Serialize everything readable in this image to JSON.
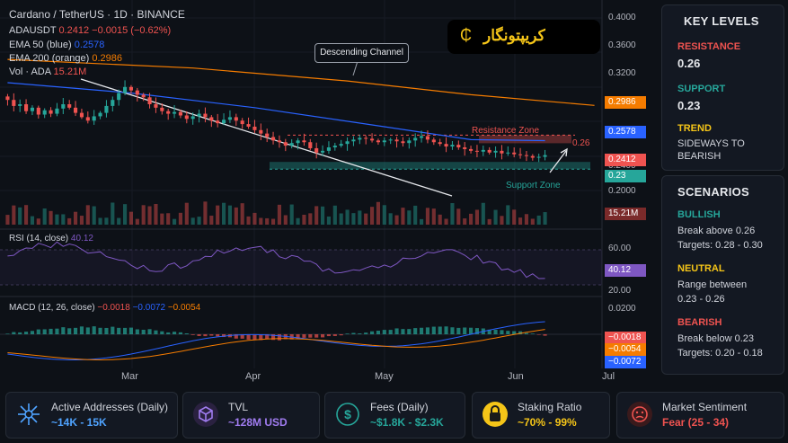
{
  "header": {
    "title": "Cardano / TetherUS · 1D · BINANCE",
    "symbol": "ADAUSDT",
    "price": "0.2412",
    "change": "−0.0015 (−0.62%)",
    "ema50_label": "EMA 50 (blue)",
    "ema50_value": "0.2578",
    "ema200_label": "EMA 200 (orange)",
    "ema200_value": "0.2986",
    "vol_label": "Vol · ADA",
    "vol_value": "15.21M"
  },
  "logo_text": "کریپتونگار",
  "annotations": {
    "channel": "Descending Channel",
    "resistance_zone": "Resistance Zone",
    "support_zone": "Support Zone",
    "resistance_tag": "0.26"
  },
  "price_axis": {
    "ticks": [
      "0.4000",
      "0.3600",
      "0.3200",
      "0.2800",
      "0.2400",
      "0.2000"
    ],
    "ema200_tag": "0.2986",
    "ema50_tag": "0.2578",
    "price_tag": "0.2412",
    "support_tag": "0.23",
    "volume_tag": "15.21M"
  },
  "rsi": {
    "label": "RSI (14, close)",
    "value": "40.12",
    "ticks": [
      "60.00",
      "40.12",
      "20.00"
    ]
  },
  "macd": {
    "label": "MACD (12, 26, close)",
    "v1": "−0.0018",
    "v2": "−0.0072",
    "v3": "−0.0054",
    "tick_top": "0.0200",
    "tags": [
      "−0.0018",
      "−0.0054",
      "−0.0072"
    ]
  },
  "x_axis": [
    "Mar",
    "Apr",
    "May",
    "Jun",
    "Jul"
  ],
  "key_levels": {
    "title": "KEY LEVELS",
    "resistance_label": "RESISTANCE",
    "resistance_value": "0.26",
    "support_label": "SUPPORT",
    "support_value": "0.23",
    "trend_label": "TREND",
    "trend_value_1": "SIDEWAYS TO",
    "trend_value_2": "BEARISH"
  },
  "scenarios": {
    "title": "SCENARIOS",
    "bullish_label": "BULLISH",
    "bullish_1": "Break above 0.26",
    "bullish_2": "Targets: 0.28 - 0.30",
    "neutral_label": "NEUTRAL",
    "neutral_1": "Range between",
    "neutral_2": "0.23 - 0.26",
    "bearish_label": "BEARISH",
    "bearish_1": "Break below 0.23",
    "bearish_2": "Targets: 0.20 - 0.18"
  },
  "cards": [
    {
      "title": "Active Addresses (Daily)",
      "value": "~14K - 15K",
      "icon": "network-icon"
    },
    {
      "title": "TVL",
      "value": "~128M USD",
      "icon": "cube-icon"
    },
    {
      "title": "Fees (Daily)",
      "value": "~$1.8K - $2.3K",
      "icon": "dollar-icon"
    },
    {
      "title": "Staking Ratio",
      "value": "~70% - 99%",
      "icon": "lock-icon"
    },
    {
      "title": "Market Sentiment",
      "value": "Fear (25 - 34)",
      "icon": "sentiment-icon"
    }
  ],
  "colors": {
    "up": "#26a69a",
    "down": "#ef5350",
    "ema50": "#2962ff",
    "ema200": "#f57c00",
    "rsi": "#7e57c2",
    "resistance": "#ef5350",
    "support": "#26a69a",
    "accent_yellow": "#f5c518"
  },
  "chart_data": {
    "type": "candlestick",
    "series_price": [
      0.305,
      0.298,
      0.3,
      0.292,
      0.296,
      0.288,
      0.293,
      0.289,
      0.295,
      0.3,
      0.296,
      0.29,
      0.285,
      0.281,
      0.286,
      0.29,
      0.298,
      0.305,
      0.313,
      0.32,
      0.316,
      0.311,
      0.308,
      0.3,
      0.296,
      0.292,
      0.289,
      0.291,
      0.287,
      0.283,
      0.286,
      0.289,
      0.285,
      0.281,
      0.278,
      0.282,
      0.285,
      0.281,
      0.277,
      0.274,
      0.27,
      0.266,
      0.262,
      0.258,
      0.256,
      0.252,
      0.255,
      0.258,
      0.256,
      0.249,
      0.244,
      0.246,
      0.25,
      0.252,
      0.254,
      0.257,
      0.259,
      0.261,
      0.26,
      0.258,
      0.256,
      0.258,
      0.259,
      0.257,
      0.255,
      0.258,
      0.261,
      0.263,
      0.259,
      0.256,
      0.254,
      0.251,
      0.253,
      0.25,
      0.248,
      0.246,
      0.245,
      0.247,
      0.244,
      0.246,
      0.243,
      0.244,
      0.242,
      0.241,
      0.24,
      0.238,
      0.239,
      0.241
    ],
    "ema50": [
      [
        0,
        0.325
      ],
      [
        20,
        0.313
      ],
      [
        40,
        0.296
      ],
      [
        60,
        0.275
      ],
      [
        75,
        0.259
      ],
      [
        87,
        0.2578
      ]
    ],
    "ema200": [
      [
        0,
        0.352
      ],
      [
        30,
        0.342
      ],
      [
        55,
        0.327
      ],
      [
        75,
        0.311
      ],
      [
        95,
        0.2986
      ]
    ],
    "rsi_range": [
      20,
      60
    ],
    "resistance": 0.26,
    "support": 0.23,
    "x_labels": [
      "Mar",
      "Apr",
      "May",
      "Jun",
      "Jul"
    ]
  }
}
